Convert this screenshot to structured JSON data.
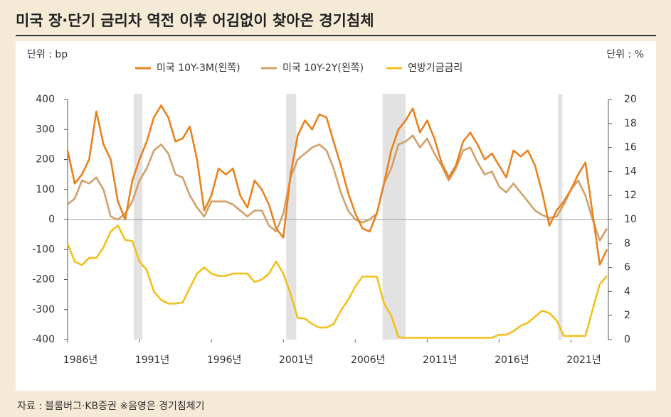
{
  "chart_data": {
    "type": "line",
    "title": "미국 장·단기 금리차 역전 이후 어김없이 찾아온 경기침체",
    "y_unit": "단위 : bp",
    "y2_unit": "단위 : %",
    "source": "자료 : 블룸버그·KB증권 ※음영은 경기침체기",
    "x": [
      1986,
      1986.5,
      1987,
      1987.5,
      1988,
      1988.5,
      1989,
      1989.5,
      1990,
      1990.5,
      1991,
      1991.5,
      1992,
      1992.5,
      1993,
      1993.5,
      1994,
      1994.5,
      1995,
      1995.5,
      1996,
      1996.5,
      1997,
      1997.5,
      1998,
      1998.5,
      1999,
      1999.5,
      2000,
      2000.5,
      2001,
      2001.5,
      2002,
      2002.5,
      2003,
      2003.5,
      2004,
      2004.5,
      2005,
      2005.5,
      2006,
      2006.5,
      2007,
      2007.5,
      2008,
      2008.5,
      2009,
      2009.5,
      2010,
      2010.5,
      2011,
      2011.5,
      2012,
      2012.5,
      2013,
      2013.5,
      2014,
      2014.5,
      2015,
      2015.5,
      2016,
      2016.5,
      2017,
      2017.5,
      2018,
      2018.5,
      2019,
      2019.5,
      2020,
      2020.5,
      2021,
      2021.5,
      2022,
      2022.5,
      2023,
      2023.5
    ],
    "series": [
      {
        "name": "미국 10Y-3M(왼쪽)",
        "color": "#e8821e",
        "values": [
          230,
          120,
          150,
          200,
          360,
          250,
          200,
          60,
          0,
          130,
          200,
          260,
          340,
          380,
          340,
          260,
          270,
          310,
          200,
          30,
          80,
          170,
          150,
          170,
          80,
          40,
          130,
          100,
          50,
          -30,
          -60,
          150,
          280,
          330,
          300,
          350,
          340,
          260,
          180,
          90,
          20,
          -30,
          -40,
          20,
          120,
          230,
          300,
          330,
          370,
          290,
          330,
          270,
          190,
          140,
          180,
          260,
          290,
          250,
          200,
          220,
          180,
          140,
          230,
          210,
          230,
          180,
          90,
          -20,
          30,
          60,
          100,
          150,
          190,
          20,
          -150,
          -100
        ]
      },
      {
        "name": "미국 10Y-2Y(왼쪽)",
        "color": "#d2a06a",
        "values": [
          50,
          70,
          130,
          120,
          140,
          100,
          10,
          0,
          20,
          60,
          130,
          170,
          230,
          250,
          220,
          150,
          140,
          80,
          40,
          10,
          60,
          60,
          60,
          50,
          30,
          10,
          30,
          30,
          -20,
          -40,
          20,
          140,
          200,
          220,
          240,
          250,
          230,
          170,
          90,
          30,
          0,
          -10,
          0,
          20,
          120,
          170,
          250,
          260,
          280,
          240,
          270,
          220,
          180,
          130,
          170,
          230,
          240,
          190,
          150,
          160,
          110,
          90,
          120,
          90,
          60,
          30,
          15,
          5,
          10,
          50,
          100,
          130,
          80,
          0,
          -70,
          -30
        ]
      },
      {
        "name": "연방기금금리",
        "color": "#f2c01c",
        "axis": "y2",
        "values": [
          8,
          6.5,
          6.2,
          6.8,
          6.8,
          7.7,
          9,
          9.5,
          8.3,
          8.2,
          6.5,
          5.8,
          4,
          3.3,
          3,
          3,
          3.1,
          4.3,
          5.5,
          6,
          5.5,
          5.3,
          5.3,
          5.5,
          5.5,
          5.5,
          4.8,
          5,
          5.5,
          6.5,
          5.5,
          3.8,
          1.8,
          1.75,
          1.3,
          1,
          1,
          1.3,
          2.4,
          3.3,
          4.4,
          5.25,
          5.25,
          5.25,
          3,
          2,
          0.2,
          0.15,
          0.15,
          0.15,
          0.15,
          0.15,
          0.15,
          0.15,
          0.15,
          0.15,
          0.15,
          0.15,
          0.15,
          0.15,
          0.4,
          0.4,
          0.7,
          1.15,
          1.4,
          1.9,
          2.4,
          2.2,
          1.6,
          0.3,
          0.3,
          0.3,
          0.3,
          2.5,
          4.6,
          5.3
        ]
      }
    ],
    "recessions": [
      [
        1990.6,
        1991.2
      ],
      [
        2001.2,
        2001.9
      ],
      [
        2007.9,
        2009.5
      ],
      [
        2020.1,
        2020.4
      ]
    ],
    "xlim": [
      1986,
      2023.6
    ],
    "xticks": [
      {
        "value": 1986,
        "label": "1986년"
      },
      {
        "value": 1991,
        "label": "1991년"
      },
      {
        "value": 1996,
        "label": "1996년"
      },
      {
        "value": 2001,
        "label": "2001년"
      },
      {
        "value": 2006,
        "label": "2006년"
      },
      {
        "value": 2011,
        "label": "2011년"
      },
      {
        "value": 2016,
        "label": "2016년"
      },
      {
        "value": 2021,
        "label": "2021년"
      }
    ],
    "ylim": [
      -400,
      400
    ],
    "yticks": [
      -400,
      -300,
      -200,
      -100,
      0,
      100,
      200,
      300,
      400
    ],
    "y2lim": [
      0,
      20
    ],
    "y2ticks": [
      0,
      2,
      4,
      6,
      8,
      10,
      12,
      14,
      16,
      18,
      20
    ]
  }
}
